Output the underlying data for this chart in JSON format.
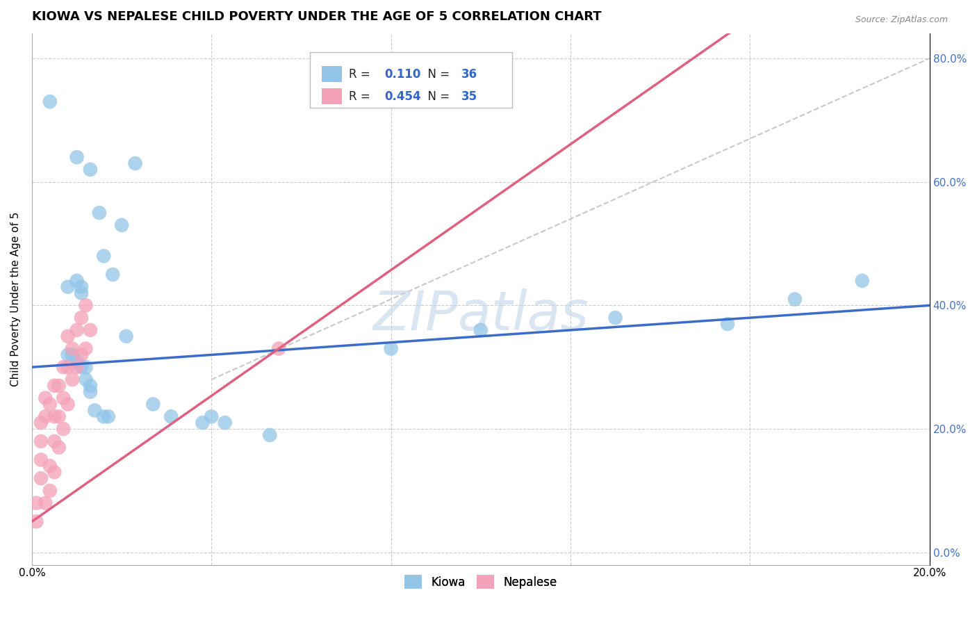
{
  "title": "KIOWA VS NEPALESE CHILD POVERTY UNDER THE AGE OF 5 CORRELATION CHART",
  "source": "Source: ZipAtlas.com",
  "ylabel": "Child Poverty Under the Age of 5",
  "xlim": [
    0.0,
    0.2
  ],
  "ylim": [
    -0.02,
    0.84
  ],
  "kiowa_R": "0.110",
  "kiowa_N": "36",
  "nepalese_R": "0.454",
  "nepalese_N": "35",
  "kiowa_color": "#92C5E8",
  "nepalese_color": "#F4A0B8",
  "kiowa_line_color": "#3B6CC7",
  "nepalese_line_color": "#E06080",
  "ref_line_color": "#C8C8C8",
  "watermark": "ZIPatlas",
  "watermark_color": "#C0D4E8",
  "background_color": "#FFFFFF",
  "grid_color": "#CCCCCC",
  "kiowa_x": [
    0.004,
    0.01,
    0.013,
    0.023,
    0.015,
    0.02,
    0.016,
    0.018,
    0.008,
    0.01,
    0.011,
    0.011,
    0.008,
    0.009,
    0.01,
    0.011,
    0.012,
    0.012,
    0.013,
    0.013,
    0.014,
    0.016,
    0.017,
    0.021,
    0.027,
    0.031,
    0.04,
    0.053,
    0.038,
    0.043,
    0.08,
    0.1,
    0.13,
    0.155,
    0.17,
    0.185
  ],
  "kiowa_y": [
    0.73,
    0.64,
    0.62,
    0.63,
    0.55,
    0.53,
    0.48,
    0.45,
    0.43,
    0.44,
    0.43,
    0.42,
    0.32,
    0.32,
    0.31,
    0.3,
    0.3,
    0.28,
    0.27,
    0.26,
    0.23,
    0.22,
    0.22,
    0.35,
    0.24,
    0.22,
    0.22,
    0.19,
    0.21,
    0.21,
    0.33,
    0.36,
    0.38,
    0.37,
    0.41,
    0.44
  ],
  "nepalese_x": [
    0.001,
    0.001,
    0.002,
    0.002,
    0.002,
    0.002,
    0.003,
    0.003,
    0.003,
    0.004,
    0.004,
    0.004,
    0.005,
    0.005,
    0.005,
    0.005,
    0.006,
    0.006,
    0.006,
    0.007,
    0.007,
    0.007,
    0.008,
    0.008,
    0.008,
    0.009,
    0.009,
    0.01,
    0.01,
    0.011,
    0.011,
    0.012,
    0.012,
    0.013,
    0.055
  ],
  "nepalese_y": [
    0.05,
    0.08,
    0.12,
    0.15,
    0.18,
    0.21,
    0.08,
    0.22,
    0.25,
    0.1,
    0.14,
    0.24,
    0.13,
    0.18,
    0.22,
    0.27,
    0.17,
    0.22,
    0.27,
    0.2,
    0.25,
    0.3,
    0.24,
    0.3,
    0.35,
    0.28,
    0.33,
    0.3,
    0.36,
    0.32,
    0.38,
    0.33,
    0.4,
    0.36,
    0.33
  ],
  "xtick_positions": [
    0.0,
    0.04,
    0.08,
    0.12,
    0.16,
    0.2
  ],
  "xtick_labels": [
    "0.0%",
    "",
    "",
    "",
    "",
    "20.0%"
  ],
  "ytick_positions": [
    0.0,
    0.2,
    0.4,
    0.6,
    0.8
  ],
  "ytick_labels": [
    "0.0%",
    "20.0%",
    "40.0%",
    "60.0%",
    "80.0%"
  ]
}
